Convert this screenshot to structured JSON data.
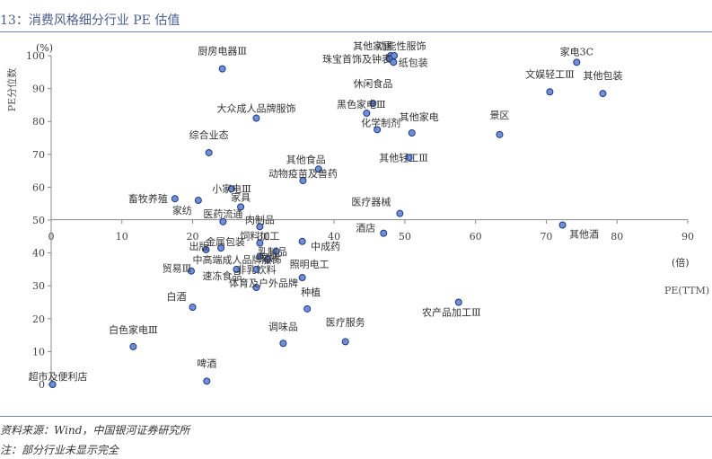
{
  "header": {
    "title": "13：消费风格细分行业 PE 估值"
  },
  "footer": {
    "source": "资料来源：Wind，中国银河证券研究所",
    "note": "注：部分行业未显示完全"
  },
  "chart_data": {
    "type": "scatter",
    "title": "",
    "xlabel": "PE(TTM)",
    "x_unit": "(倍)",
    "ylabel": "PE分位数",
    "y_unit": "(%)",
    "xlim": [
      0,
      90
    ],
    "ylim": [
      0,
      100
    ],
    "x_ticks": [
      "0",
      "10",
      "20",
      "30",
      "40",
      "50",
      "60",
      "70",
      "80",
      "90"
    ],
    "y_ticks": [
      "0",
      "10",
      "20",
      "30",
      "40",
      "50",
      "60",
      "70",
      "80",
      "90",
      "100"
    ],
    "grid": false,
    "legend": "none",
    "colors": {
      "point_fill": "#6f8fdc",
      "point_stroke": "#1f3a7a",
      "axis": "#888888",
      "title": "#4a5e8a"
    },
    "points": [
      {
        "label": "厨房电器Ⅲ",
        "x": 24.2,
        "y": 96
      },
      {
        "label": "其他家居",
        "x": 48.0,
        "y": 100
      },
      {
        "label": "功能性服饰",
        "x": 48.5,
        "y": 100
      },
      {
        "label": "珠宝首饰及钟表",
        "x": 47.8,
        "y": 99
      },
      {
        "label": "纸包装",
        "x": 48.4,
        "y": 98
      },
      {
        "label": "家电3C",
        "x": 74.3,
        "y": 98
      },
      {
        "label": "文娱轻工Ⅲ",
        "x": 70.5,
        "y": 89
      },
      {
        "label": "其他包装",
        "x": 78.0,
        "y": 88.5
      },
      {
        "label": "休闲食品",
        "x": 45.5,
        "y": 85.5
      },
      {
        "label": "黑色家电Ⅲ",
        "x": 44.6,
        "y": 82.5
      },
      {
        "label": "大众成人品牌服饰",
        "x": 29.0,
        "y": 81
      },
      {
        "label": "化学制剂",
        "x": 46.1,
        "y": 77.5
      },
      {
        "label": "其他家电",
        "x": 51.0,
        "y": 76.5
      },
      {
        "label": "景区",
        "x": 63.4,
        "y": 76
      },
      {
        "label": "综合业态",
        "x": 22.3,
        "y": 70.5
      },
      {
        "label": "其他轻工Ⅲ",
        "x": 50.6,
        "y": 69
      },
      {
        "label": "其他食品",
        "x": 37.8,
        "y": 65.5
      },
      {
        "label": "动物疫苗及兽药",
        "x": 35.6,
        "y": 62
      },
      {
        "label": "小家电Ⅲ",
        "x": 25.5,
        "y": 59.5
      },
      {
        "label": "畜牧养殖",
        "x": 17.5,
        "y": 56.5
      },
      {
        "label": "家纺",
        "x": 20.8,
        "y": 56
      },
      {
        "label": "家具",
        "x": 26.8,
        "y": 54
      },
      {
        "label": "医疗器械",
        "x": 49.3,
        "y": 52
      },
      {
        "label": "医药流通",
        "x": 24.3,
        "y": 49.5
      },
      {
        "label": "肉制品",
        "x": 29.5,
        "y": 48
      },
      {
        "label": "其他酒",
        "x": 72.3,
        "y": 48.5
      },
      {
        "label": "酒店",
        "x": 47.0,
        "y": 46
      },
      {
        "label": "饲料加工",
        "x": 29.5,
        "y": 43
      },
      {
        "label": "中成药",
        "x": 35.5,
        "y": 43.5
      },
      {
        "label": "出版",
        "x": 21.9,
        "y": 41
      },
      {
        "label": "金属包装",
        "x": 24.0,
        "y": 41.5
      },
      {
        "label": "乳制品",
        "x": 31.8,
        "y": 40.5
      },
      {
        "label": "中高端成人品牌服饰",
        "x": 30.6,
        "y": 38
      },
      {
        "label": "家装",
        "x": 29.5,
        "y": 39
      },
      {
        "label": "贸易Ⅲ",
        "x": 19.8,
        "y": 34.5
      },
      {
        "label": "速冻食品",
        "x": 26.2,
        "y": 35
      },
      {
        "label": "非乳饮料",
        "x": 29.0,
        "y": 35
      },
      {
        "label": "照明电工",
        "x": 35.5,
        "y": 32.5
      },
      {
        "label": "体育及户外品牌",
        "x": 29.0,
        "y": 29.5
      },
      {
        "label": "种植",
        "x": 36.2,
        "y": 23
      },
      {
        "label": "白酒",
        "x": 20.0,
        "y": 23.5
      },
      {
        "label": "农产品加工Ⅲ",
        "x": 57.6,
        "y": 25
      },
      {
        "label": "调味品",
        "x": 32.8,
        "y": 12.5
      },
      {
        "label": "医疗服务",
        "x": 41.6,
        "y": 13
      },
      {
        "label": "白色家电Ⅲ",
        "x": 11.6,
        "y": 11.5
      },
      {
        "label": "啤酒",
        "x": 22.0,
        "y": 1
      },
      {
        "label": "超市及便利店",
        "x": 0.2,
        "y": 0
      }
    ]
  }
}
